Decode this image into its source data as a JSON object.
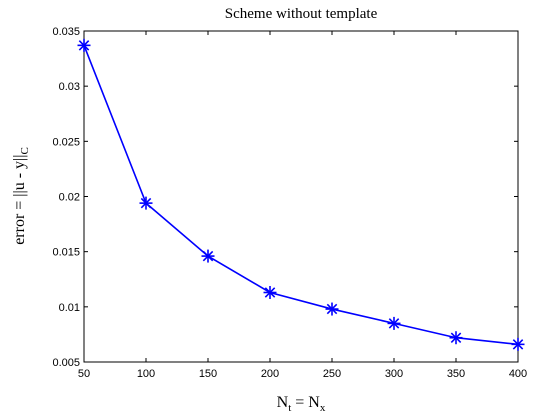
{
  "chart_data": {
    "type": "line",
    "title": "Scheme without template",
    "xlabel": {
      "main": "N",
      "sub_t": "t",
      "equals": " = N",
      "sub_x": "x"
    },
    "ylabel": {
      "main": "error = ||u - y||",
      "sub": "C"
    },
    "xlim": [
      50,
      400
    ],
    "ylim": [
      0.005,
      0.035
    ],
    "xticks": [
      50,
      100,
      150,
      200,
      250,
      300,
      350,
      400
    ],
    "yticks": [
      0.005,
      0.01,
      0.015,
      0.02,
      0.025,
      0.03,
      0.035
    ],
    "ytick_labels": [
      "0.005",
      "0.01",
      "0.015",
      "0.02",
      "0.025",
      "0.03",
      "0.035"
    ],
    "grid": false,
    "marker": "asterisk",
    "color": "#0000ff",
    "series": [
      {
        "x": [
          50,
          100,
          150,
          200,
          250,
          300,
          350,
          400
        ],
        "values": [
          0.0337,
          0.0194,
          0.0146,
          0.0113,
          0.0098,
          0.0085,
          0.0072,
          0.0066
        ]
      }
    ]
  }
}
